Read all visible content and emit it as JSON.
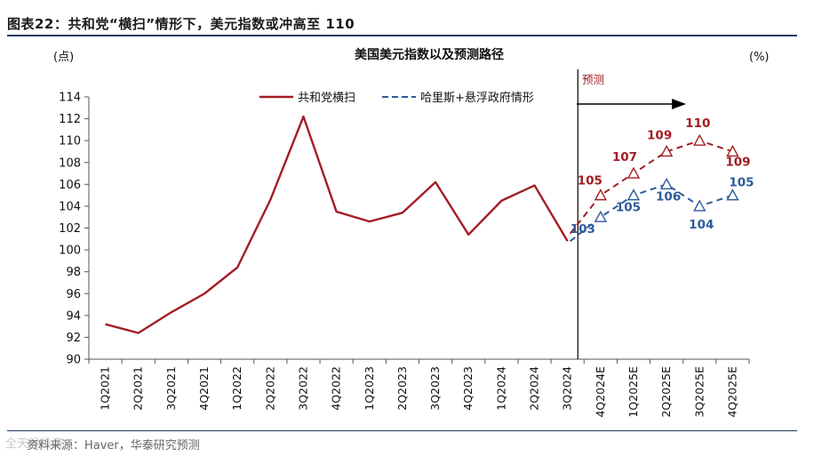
{
  "figure": {
    "title": "图表22：共和党“横扫”情形下，美元指数或冲高至 110",
    "source": "资料来源：Haver，华泰研究预测",
    "watermark": "全天候投资"
  },
  "colors": {
    "red": "#a31d24",
    "blue": "#2e5b9a",
    "axis": "#555555",
    "rule": "#1f3a5f"
  },
  "chart_data": {
    "type": "line",
    "title": "美国美元指数以及预测路径",
    "ylabel_left": "(点)",
    "ylabel_right": "(%)",
    "forecast_label": "预测",
    "ylim": [
      90,
      114
    ],
    "yticks": [
      90,
      92,
      94,
      96,
      98,
      100,
      102,
      104,
      106,
      108,
      110,
      112,
      114
    ],
    "categories": [
      "1Q2021",
      "2Q2021",
      "3Q2021",
      "4Q2021",
      "1Q2022",
      "2Q2022",
      "3Q2022",
      "4Q2022",
      "1Q2023",
      "2Q2023",
      "3Q2023",
      "4Q2023",
      "1Q2024",
      "2Q2024",
      "3Q2024",
      "4Q2024E",
      "1Q2025E",
      "2Q2025E",
      "3Q2025E",
      "4Q2025E"
    ],
    "series": [
      {
        "name": "共和党横扫",
        "color": "#a31d24",
        "historical": [
          93.2,
          92.4,
          94.3,
          96.0,
          98.4,
          104.6,
          112.2,
          103.5,
          102.6,
          103.4,
          106.2,
          101.4,
          104.5,
          105.9,
          100.8
        ],
        "forecast": [
          null,
          null,
          null,
          null,
          null,
          null,
          null,
          null,
          null,
          null,
          null,
          null,
          null,
          null,
          101.5,
          105,
          107,
          109,
          110,
          109
        ],
        "labels": [
          "105",
          "107",
          "109",
          "110",
          "109"
        ]
      },
      {
        "name": "哈里斯+悬浮政府情形",
        "color": "#2e5b9a",
        "forecast": [
          null,
          null,
          null,
          null,
          null,
          null,
          null,
          null,
          null,
          null,
          null,
          null,
          null,
          null,
          100.8,
          103,
          105,
          106,
          104,
          105
        ],
        "labels": [
          "103",
          "105",
          "106",
          "104",
          "105"
        ]
      }
    ]
  }
}
